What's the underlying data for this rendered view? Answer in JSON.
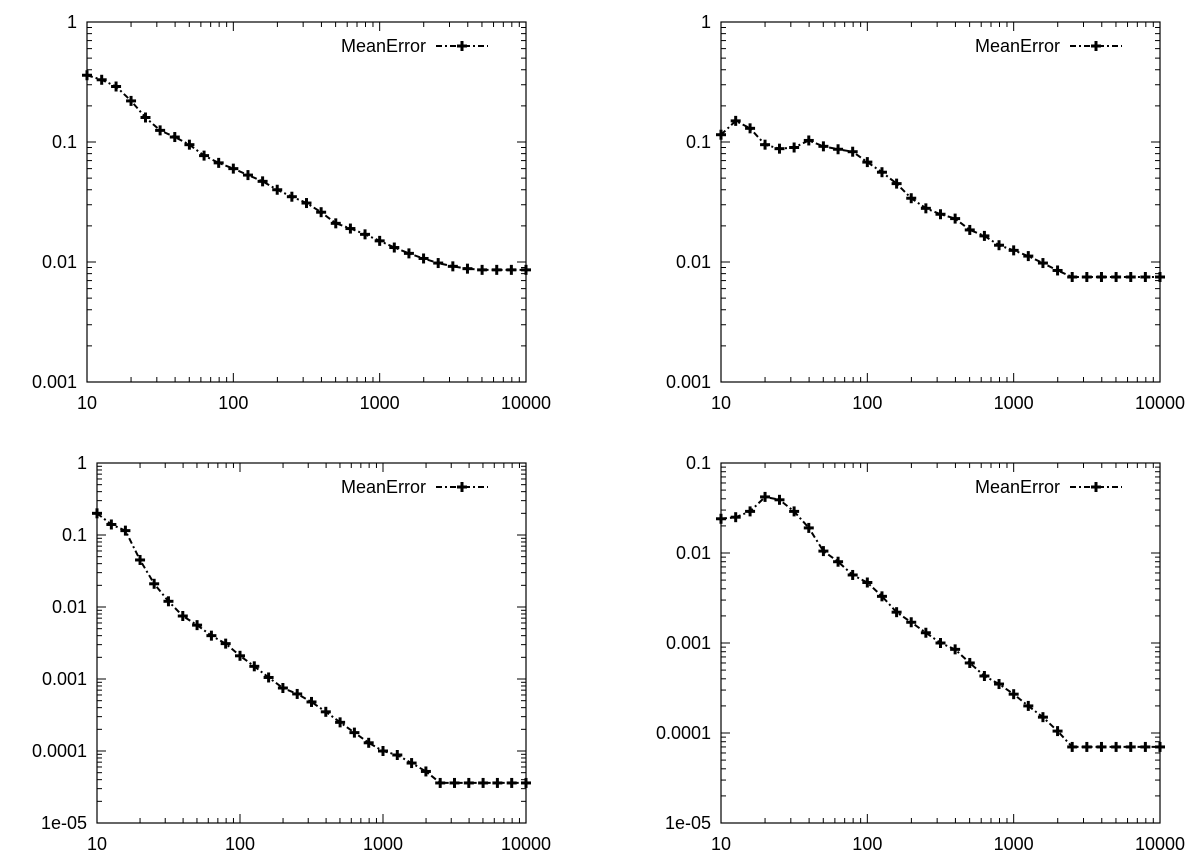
{
  "chart_data": [
    {
      "type": "line",
      "xscale": "log",
      "yscale": "log",
      "xlim": [
        10,
        10000
      ],
      "ylim": [
        0.001,
        1
      ],
      "xticks": [
        "10",
        "100",
        "1000",
        "10000"
      ],
      "yticks": [
        "0.001",
        "0.01",
        "0.1",
        "1"
      ],
      "legend": "top-right",
      "series": [
        {
          "name": "MeanError",
          "x": [
            10,
            12.6,
            15.8,
            20,
            25.1,
            31.6,
            39.8,
            50.1,
            63.1,
            79.4,
            100,
            125.9,
            158.5,
            199.5,
            251.2,
            316.2,
            398.1,
            501.2,
            631,
            794.3,
            1000,
            1258.9,
            1584.9,
            1995.3,
            2511.9,
            3162.3,
            3981.1,
            5011.9,
            6309.6,
            7943.3,
            10000
          ],
          "values": [
            0.36,
            0.33,
            0.29,
            0.22,
            0.16,
            0.125,
            0.11,
            0.095,
            0.077,
            0.067,
            0.06,
            0.053,
            0.047,
            0.04,
            0.035,
            0.031,
            0.026,
            0.021,
            0.019,
            0.017,
            0.015,
            0.0132,
            0.0118,
            0.0107,
            0.0098,
            0.0092,
            0.0088,
            0.0086,
            0.0086,
            0.0086,
            0.0086
          ]
        }
      ]
    },
    {
      "type": "line",
      "xscale": "log",
      "yscale": "log",
      "xlim": [
        10,
        10000
      ],
      "ylim": [
        0.001,
        1
      ],
      "xticks": [
        "10",
        "100",
        "1000",
        "10000"
      ],
      "yticks": [
        "0.001",
        "0.01",
        "0.1",
        "1"
      ],
      "legend": "top-right",
      "series": [
        {
          "name": "MeanError",
          "x": [
            10,
            12.6,
            15.8,
            20,
            25.1,
            31.6,
            39.8,
            50.1,
            63.1,
            79.4,
            100,
            125.9,
            158.5,
            199.5,
            251.2,
            316.2,
            398.1,
            501.2,
            631,
            794.3,
            1000,
            1258.9,
            1584.9,
            1995.3,
            2511.9,
            3162.3,
            3981.1,
            5011.9,
            6309.6,
            7943.3,
            10000
          ],
          "values": [
            0.115,
            0.15,
            0.13,
            0.095,
            0.088,
            0.09,
            0.103,
            0.092,
            0.087,
            0.083,
            0.068,
            0.056,
            0.045,
            0.034,
            0.028,
            0.025,
            0.023,
            0.0185,
            0.0165,
            0.0138,
            0.0125,
            0.0112,
            0.0098,
            0.0085,
            0.0075,
            0.0075,
            0.0075,
            0.0075,
            0.0075,
            0.0075,
            0.0075
          ]
        }
      ]
    },
    {
      "type": "line",
      "xscale": "log",
      "yscale": "log",
      "xlim": [
        10,
        10000
      ],
      "ylim": [
        1e-05,
        1
      ],
      "xticks": [
        "10",
        "100",
        "1000",
        "10000"
      ],
      "yticks": [
        "1e-05",
        "0.0001",
        "0.001",
        "0.01",
        "0.1",
        "1"
      ],
      "legend": "top-right",
      "series": [
        {
          "name": "MeanError",
          "x": [
            10,
            12.6,
            15.8,
            20,
            25.1,
            31.6,
            39.8,
            50.1,
            63.1,
            79.4,
            100,
            125.9,
            158.5,
            199.5,
            251.2,
            316.2,
            398.1,
            501.2,
            631,
            794.3,
            1000,
            1258.9,
            1584.9,
            1995.3,
            2511.9,
            3162.3,
            3981.1,
            5011.9,
            6309.6,
            7943.3,
            10000
          ],
          "values": [
            0.2,
            0.14,
            0.115,
            0.045,
            0.021,
            0.012,
            0.0075,
            0.0056,
            0.004,
            0.0031,
            0.0021,
            0.0015,
            0.00105,
            0.00075,
            0.00062,
            0.00048,
            0.00035,
            0.00025,
            0.00018,
            0.00013,
            0.0001,
            8.8e-05,
            6.8e-05,
            5.2e-05,
            3.6e-05,
            3.6e-05,
            3.6e-05,
            3.6e-05,
            3.6e-05,
            3.6e-05,
            3.6e-05
          ]
        }
      ]
    },
    {
      "type": "line",
      "xscale": "log",
      "yscale": "log",
      "xlim": [
        10,
        10000
      ],
      "ylim": [
        1e-05,
        0.1
      ],
      "xticks": [
        "10",
        "100",
        "1000",
        "10000"
      ],
      "yticks": [
        "1e-05",
        "0.0001",
        "0.001",
        "0.01",
        "0.1"
      ],
      "legend": "top-right",
      "series": [
        {
          "name": "MeanError",
          "x": [
            10,
            12.6,
            15.8,
            20,
            25.1,
            31.6,
            39.8,
            50.1,
            63.1,
            79.4,
            100,
            125.9,
            158.5,
            199.5,
            251.2,
            316.2,
            398.1,
            501.2,
            631,
            794.3,
            1000,
            1258.9,
            1584.9,
            1995.3,
            2511.9,
            3162.3,
            3981.1,
            5011.9,
            6309.6,
            7943.3,
            10000
          ],
          "values": [
            0.024,
            0.025,
            0.029,
            0.042,
            0.039,
            0.029,
            0.019,
            0.0105,
            0.008,
            0.0057,
            0.0047,
            0.0033,
            0.0022,
            0.0017,
            0.0013,
            0.001,
            0.00085,
            0.0006,
            0.00043,
            0.00035,
            0.00027,
            0.0002,
            0.00015,
            0.000105,
            7e-05,
            7e-05,
            7e-05,
            7e-05,
            7e-05,
            7e-05,
            7e-05
          ]
        }
      ]
    }
  ]
}
